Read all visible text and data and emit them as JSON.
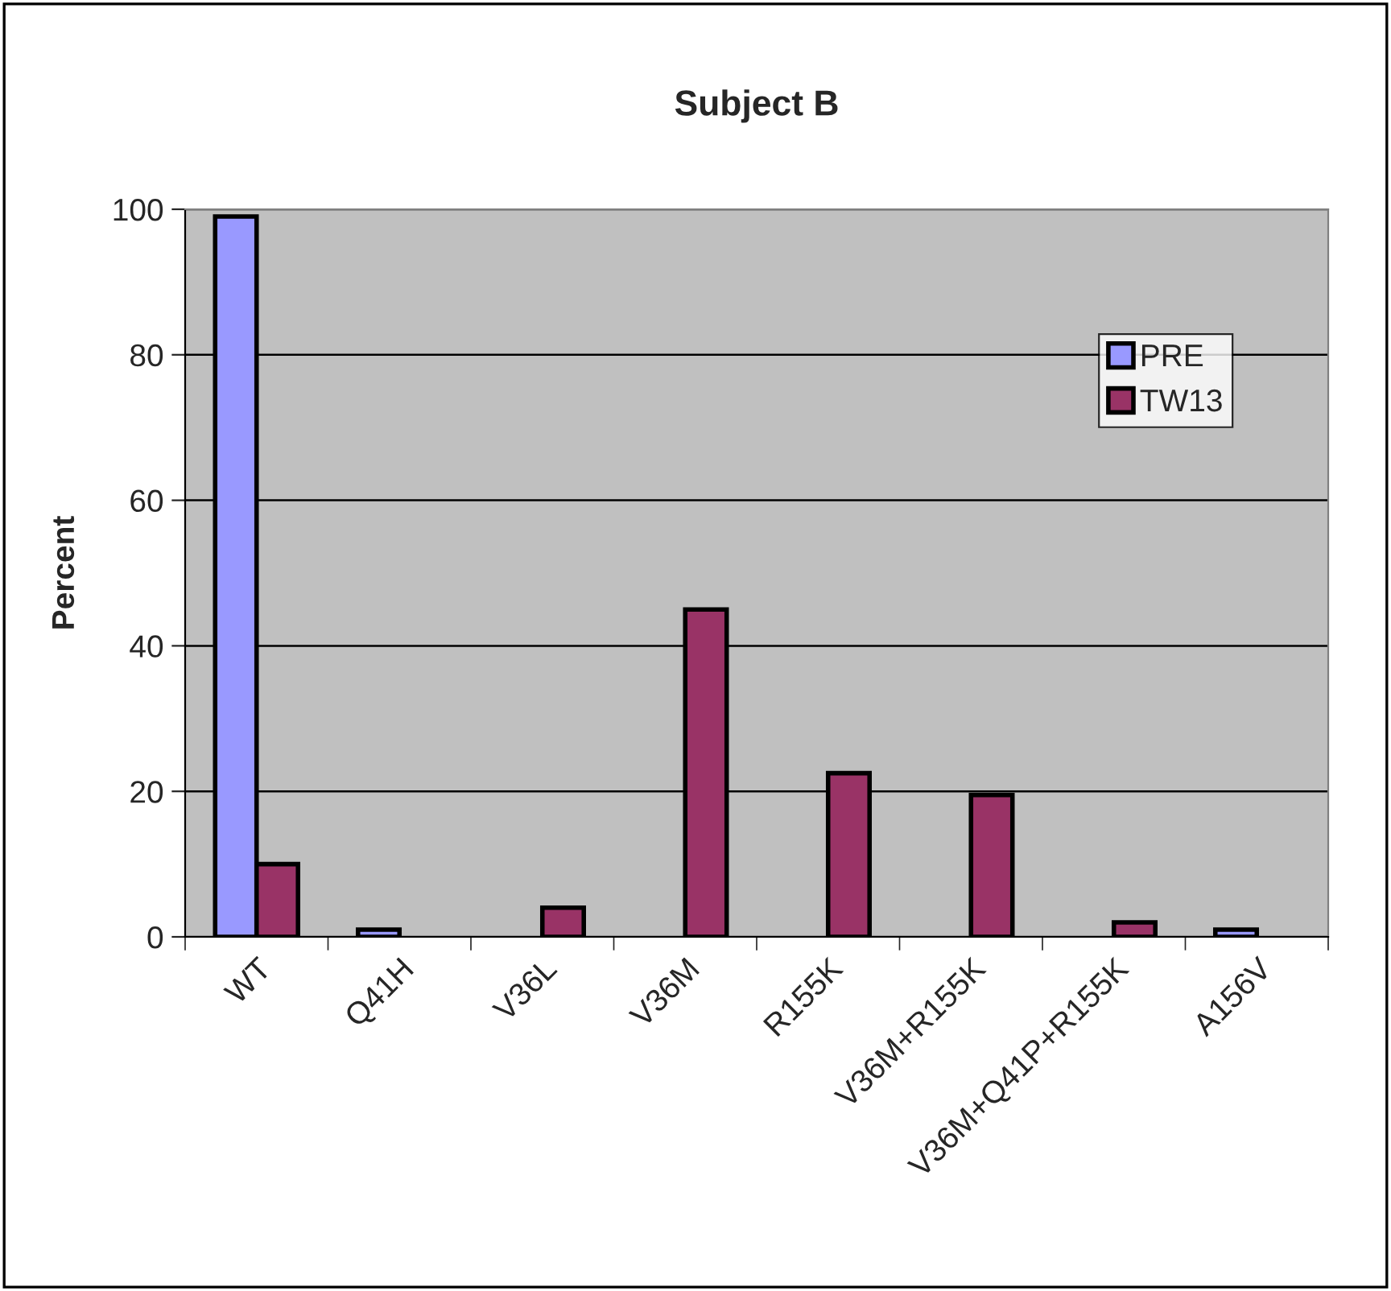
{
  "chart_data": {
    "type": "bar",
    "title": "Subject B",
    "ylabel": "Percent",
    "categories": [
      "WT",
      "Q41H",
      "V36L",
      "V36M",
      "R155K",
      "V36M+R155K",
      "V36M+Q41P+R155K",
      "A156V"
    ],
    "series": [
      {
        "name": "PRE",
        "color": "#9999ff",
        "values": [
          99,
          1,
          null,
          null,
          null,
          null,
          null,
          1
        ]
      },
      {
        "name": "TW13",
        "color": "#993366",
        "values": [
          10,
          null,
          4,
          45,
          22.5,
          19.5,
          2,
          null
        ]
      }
    ],
    "ylim": [
      0,
      100
    ],
    "yticks": [
      0,
      20,
      40,
      60,
      80,
      100
    ],
    "grid": "y",
    "legend": "top right"
  }
}
